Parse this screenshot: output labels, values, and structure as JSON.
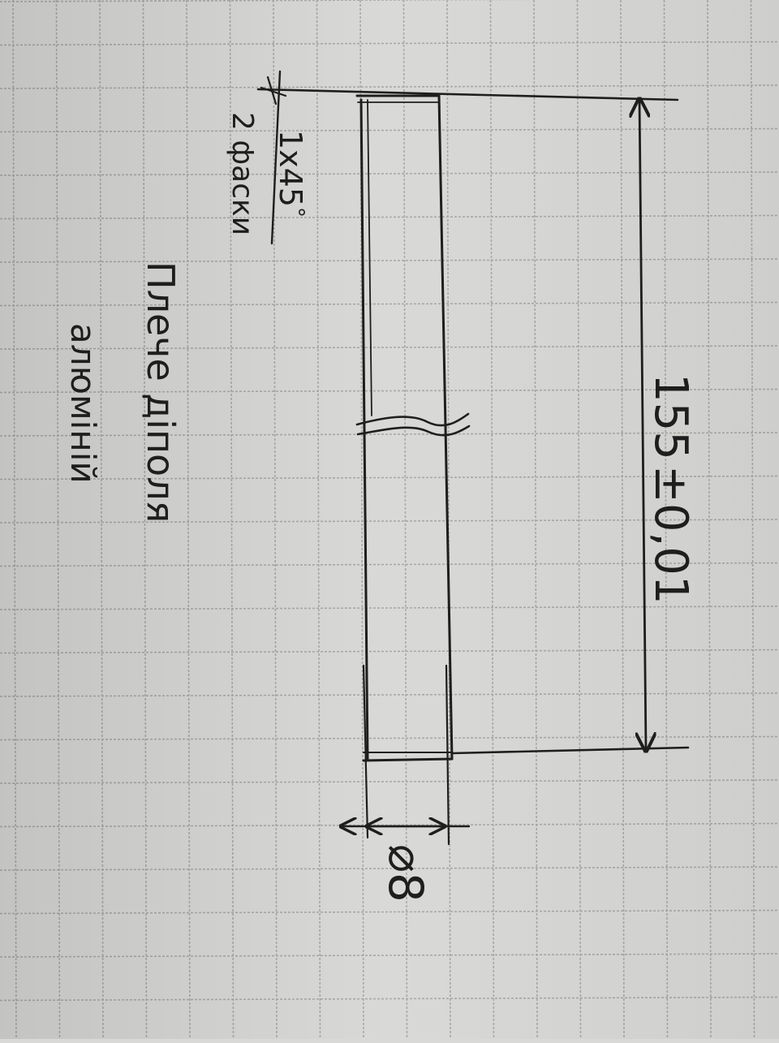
{
  "drawing": {
    "dimension_length": "155",
    "dimension_tolerance": "±0,01",
    "dimension_diameter": "⌀8",
    "chamfer_size": "1x45",
    "chamfer_degree": "°",
    "chamfer_count": "2 фаски",
    "part_name": "Плече діполя",
    "material": "алюміній"
  },
  "colors": {
    "paper": "#d9d9d7",
    "grid": "#a9a9a6",
    "ink": "#1e1e1e"
  }
}
